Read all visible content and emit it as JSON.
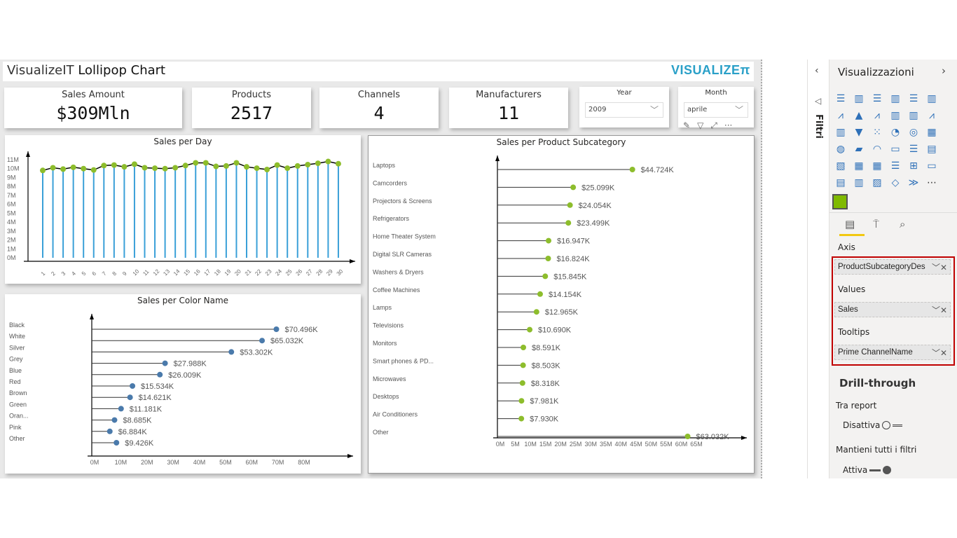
{
  "header": {
    "title_prefix": "VisualizeIT",
    "title_main": "Lollipop Chart",
    "logo": "VISUALIZEπ"
  },
  "kpis": [
    {
      "label": "Sales Amount",
      "value": "$309Mln"
    },
    {
      "label": "Products",
      "value": "2517"
    },
    {
      "label": "Channels",
      "value": "4"
    },
    {
      "label": "Manufacturers",
      "value": "11"
    }
  ],
  "slicers": {
    "year": {
      "label": "Year",
      "value": "2009"
    },
    "month": {
      "label": "Month",
      "value": "aprile"
    }
  },
  "visual_header_icons": [
    "pin-icon",
    "filter-icon",
    "focus-mode-icon",
    "more-options-icon"
  ],
  "colors": {
    "stem_day": "#3aa0d8",
    "dot_green": "#8dbd2c",
    "dot_blue": "#4a7aab",
    "accent": "#f2c811",
    "highlight_border": "#c00000"
  },
  "chart_data": [
    {
      "type": "lollipop-vertical",
      "title": "Sales per Day",
      "categories": [
        "1",
        "2",
        "3",
        "4",
        "5",
        "6",
        "7",
        "8",
        "9",
        "10",
        "11",
        "12",
        "13",
        "14",
        "15",
        "16",
        "17",
        "18",
        "19",
        "20",
        "21",
        "22",
        "23",
        "24",
        "25",
        "26",
        "27",
        "28",
        "29",
        "30"
      ],
      "values": [
        9.8,
        10.1,
        9.95,
        10.15,
        10.0,
        9.85,
        10.35,
        10.4,
        10.2,
        10.5,
        10.1,
        10.05,
        10.0,
        10.1,
        10.35,
        10.65,
        10.65,
        10.25,
        10.3,
        10.65,
        10.2,
        10.05,
        9.9,
        10.4,
        10.05,
        10.3,
        10.45,
        10.6,
        10.8,
        10.55
      ],
      "unit": "M",
      "yticks": [
        "0M",
        "1M",
        "2M",
        "3M",
        "4M",
        "5M",
        "6M",
        "7M",
        "8M",
        "9M",
        "10M",
        "11M"
      ],
      "ylim": [
        0,
        11
      ]
    },
    {
      "type": "lollipop-horizontal",
      "title": "Sales per Color Name",
      "categories": [
        "Black",
        "White",
        "Silver",
        "Grey",
        "Blue",
        "Red",
        "Brown",
        "Green",
        "Oran...",
        "Pink",
        "Other"
      ],
      "values": [
        70.496,
        65.032,
        53.302,
        27.988,
        26.009,
        15.534,
        14.621,
        11.181,
        8.685,
        6.884,
        9.426
      ],
      "labels": [
        "$70.496K",
        "$65.032K",
        "$53.302K",
        "$27.988K",
        "$26.009K",
        "$15.534K",
        "$14.621K",
        "$11.181K",
        "$8.685K",
        "$6.884K",
        "$9.426K"
      ],
      "xticks": [
        "0M",
        "10M",
        "20M",
        "30M",
        "40M",
        "50M",
        "60M",
        "70M",
        "80M"
      ],
      "xlim": [
        0,
        80
      ]
    },
    {
      "type": "lollipop-horizontal",
      "title": "Sales per Product Subcategory",
      "categories": [
        "Laptops",
        "Camcorders",
        "Projectors & Screens",
        "Refrigerators",
        "Home Theater System",
        "Digital SLR Cameras",
        "Washers & Dryers",
        "Coffee Machines",
        "Lamps",
        "Televisions",
        "Monitors",
        "Smart phones & PD...",
        "Microwaves",
        "Desktops",
        "Air Conditioners",
        "Other"
      ],
      "values": [
        44.724,
        25.099,
        24.054,
        23.499,
        16.947,
        16.824,
        15.845,
        14.154,
        12.965,
        10.69,
        8.591,
        8.503,
        8.318,
        7.981,
        7.93,
        63.032
      ],
      "labels": [
        "$44.724K",
        "$25.099K",
        "$24.054K",
        "$23.499K",
        "$16.947K",
        "$16.824K",
        "$15.845K",
        "$14.154K",
        "$12.965K",
        "$10.690K",
        "$8.591K",
        "$8.503K",
        "$8.318K",
        "$7.981K",
        "$7.930K",
        "$63.032K"
      ],
      "xticks": [
        "0M",
        "5M",
        "10M",
        "15M",
        "20M",
        "25M",
        "30M",
        "35M",
        "40M",
        "45M",
        "50M",
        "55M",
        "60M",
        "65M"
      ],
      "xlim": [
        0,
        65
      ]
    }
  ],
  "filters_pane": {
    "label": "Filtri"
  },
  "viz_pane": {
    "title": "Visualizzazioni",
    "fields": {
      "axis_label": "Axis",
      "axis_value": "ProductSubcategoryDes",
      "values_label": "Values",
      "values_value": "Sales",
      "tooltips_label": "Tooltips",
      "tooltips_value": "Prime ChannelName"
    },
    "drill": {
      "title": "Drill-through",
      "cross_report": "Tra report",
      "cross_state": "Disattiva",
      "keep_filters": "Mantieni tutti i filtri",
      "keep_state": "Attiva"
    }
  }
}
